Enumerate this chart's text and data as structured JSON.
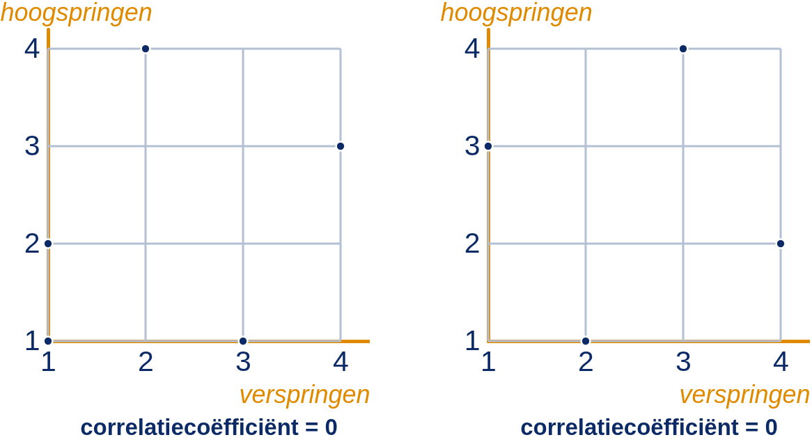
{
  "chart_data": [
    {
      "type": "scatter",
      "title": "correlatiecoëfficiënt = 0",
      "xlabel": "verspringen",
      "ylabel": "hoogspringen",
      "x": [
        1,
        1,
        2,
        3,
        4
      ],
      "series": [
        {
          "color": "#0b2a66",
          "values": [
            1,
            2,
            4,
            1,
            3
          ]
        }
      ],
      "xlim": [
        1,
        4.3
      ],
      "ylim": [
        1,
        4.2
      ],
      "xticks": [
        1,
        2,
        3,
        4
      ],
      "yticks": [
        1,
        2,
        3,
        4
      ],
      "grid": true,
      "marker": "circle"
    },
    {
      "type": "scatter",
      "title": "correlatiecoëfficiënt = 0",
      "xlabel": "verspringen",
      "ylabel": "hoogspringen",
      "x": [
        1,
        2,
        3,
        4
      ],
      "series": [
        {
          "color": "#0b2a66",
          "values": [
            3,
            1,
            4,
            2
          ]
        }
      ],
      "xlim": [
        1,
        4.3
      ],
      "ylim": [
        1,
        4.2
      ],
      "xticks": [
        1,
        2,
        3,
        4
      ],
      "yticks": [
        1,
        2,
        3,
        4
      ],
      "grid": true,
      "marker": "circle"
    }
  ]
}
